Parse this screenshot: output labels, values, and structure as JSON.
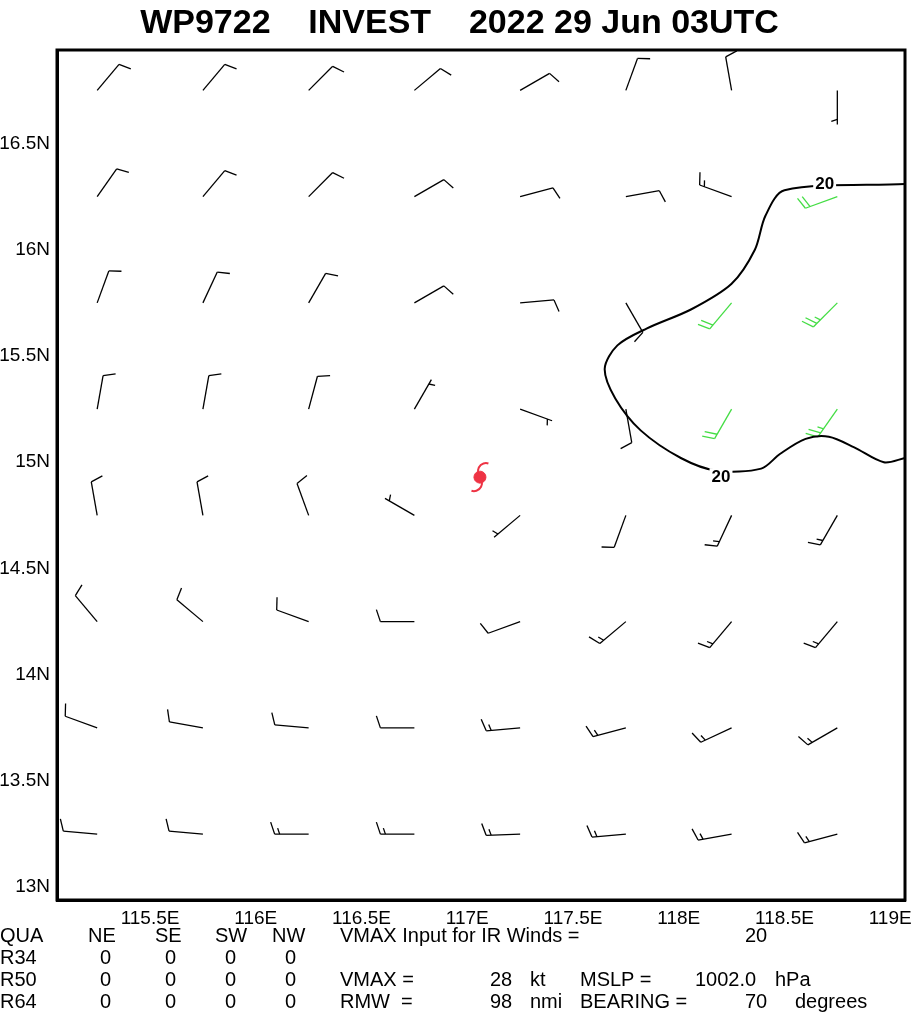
{
  "chart_data": {
    "type": "wind_barbs",
    "title": "WP9722    INVEST    2022 29 Jun 03UTC",
    "xlim": [
      115.06,
      119.07
    ],
    "ylim": [
      12.94,
      16.94
    ],
    "xticks": [
      {
        "value": 115.5,
        "label": "115.5E"
      },
      {
        "value": 116,
        "label": "116E"
      },
      {
        "value": 116.5,
        "label": "116.5E"
      },
      {
        "value": 117,
        "label": "117E"
      },
      {
        "value": 117.5,
        "label": "117.5E"
      },
      {
        "value": 118,
        "label": "118E"
      },
      {
        "value": 118.5,
        "label": "118.5E"
      },
      {
        "value": 119,
        "label": "119E"
      }
    ],
    "yticks": [
      {
        "value": 13,
        "label": "13N"
      },
      {
        "value": 13.5,
        "label": "13.5N"
      },
      {
        "value": 14,
        "label": "14N"
      },
      {
        "value": 14.5,
        "label": "14.5N"
      },
      {
        "value": 15,
        "label": "15N"
      },
      {
        "value": 15.5,
        "label": "15.5N"
      },
      {
        "value": 16,
        "label": "16N"
      },
      {
        "value": 16.5,
        "label": "16.5N"
      }
    ],
    "grid": false,
    "barbs": {
      "lons": [
        115.25,
        115.75,
        116.25,
        116.75,
        117.25,
        117.75,
        118.25,
        118.75
      ],
      "lats": [
        16.75,
        16.25,
        15.75,
        15.25,
        14.75,
        14.25,
        13.75,
        13.25
      ],
      "direction": [
        [
          40,
          40,
          45,
          50,
          60,
          20,
          350,
          180
        ],
        [
          35,
          40,
          45,
          60,
          75,
          80,
          290,
          250
        ],
        [
          20,
          25,
          30,
          60,
          85,
          150,
          220,
          225
        ],
        [
          10,
          10,
          15,
          30,
          110,
          170,
          210,
          215
        ],
        [
          350,
          350,
          340,
          300,
          230,
          200,
          205,
          210
        ],
        [
          320,
          310,
          290,
          270,
          250,
          230,
          220,
          220
        ],
        [
          290,
          280,
          275,
          270,
          265,
          255,
          245,
          240
        ],
        [
          275,
          275,
          270,
          270,
          268,
          265,
          260,
          255
        ]
      ],
      "speed": [
        [
          12,
          12,
          12,
          12,
          12,
          10,
          12,
          8
        ],
        [
          12,
          12,
          12,
          12,
          12,
          12,
          15,
          20
        ],
        [
          10,
          10,
          10,
          10,
          12,
          14,
          22,
          25
        ],
        [
          10,
          10,
          10,
          8,
          8,
          14,
          22,
          25
        ],
        [
          12,
          12,
          10,
          6,
          8,
          14,
          18,
          18
        ],
        [
          12,
          12,
          12,
          12,
          14,
          15,
          16,
          16
        ],
        [
          12,
          14,
          14,
          14,
          15,
          15,
          15,
          15
        ],
        [
          14,
          14,
          15,
          15,
          15,
          15,
          15,
          15
        ]
      ],
      "colors": [
        [
          "#000000",
          "#000000",
          "#000000",
          "#000000",
          "#000000",
          "#000000",
          "#000000",
          "#000000"
        ],
        [
          "#000000",
          "#000000",
          "#000000",
          "#000000",
          "#000000",
          "#000000",
          "#000000",
          "#44dd44"
        ],
        [
          "#000000",
          "#000000",
          "#000000",
          "#000000",
          "#000000",
          "#000000",
          "#44dd44",
          "#44dd44"
        ],
        [
          "#000000",
          "#000000",
          "#000000",
          "#000000",
          "#000000",
          "#000000",
          "#44dd44",
          "#44dd44"
        ],
        [
          "#000000",
          "#000000",
          "#000000",
          "#000000",
          "#000000",
          "#000000",
          "#000000",
          "#000000"
        ],
        [
          "#000000",
          "#000000",
          "#000000",
          "#000000",
          "#000000",
          "#000000",
          "#000000",
          "#000000"
        ],
        [
          "#000000",
          "#000000",
          "#000000",
          "#000000",
          "#000000",
          "#000000",
          "#000000",
          "#000000"
        ],
        [
          "#000000",
          "#000000",
          "#000000",
          "#000000",
          "#000000",
          "#000000",
          "#000000",
          "#000000"
        ]
      ]
    },
    "contour": {
      "level": 20,
      "color": "#000000",
      "points": [
        [
          119.07,
          16.31
        ],
        [
          118.5,
          16.28
        ],
        [
          118.41,
          16.16
        ],
        [
          118.36,
          16.0
        ],
        [
          118.25,
          15.84
        ],
        [
          118.06,
          15.72
        ],
        [
          117.85,
          15.63
        ],
        [
          117.71,
          15.55
        ],
        [
          117.65,
          15.44
        ],
        [
          117.7,
          15.3
        ],
        [
          117.82,
          15.15
        ],
        [
          118.01,
          15.02
        ],
        [
          118.18,
          14.96
        ],
        [
          118.39,
          14.97
        ],
        [
          118.48,
          15.04
        ],
        [
          118.6,
          15.11
        ],
        [
          118.71,
          15.12
        ],
        [
          118.83,
          15.07
        ],
        [
          118.97,
          15.0
        ],
        [
          119.07,
          15.02
        ]
      ],
      "label_positions": [
        [
          118.69,
          16.31
        ],
        [
          118.2,
          14.93
        ]
      ]
    },
    "center": {
      "lon": 117.06,
      "lat": 14.93,
      "color": "#ee3344"
    },
    "info": {
      "header": "QUA",
      "quadrants": [
        "NE",
        "SE",
        "SW",
        "NW"
      ],
      "radii": [
        {
          "label": "R34",
          "values": [
            0,
            0,
            0,
            0
          ]
        },
        {
          "label": "R50",
          "values": [
            0,
            0,
            0,
            0
          ]
        },
        {
          "label": "R64",
          "values": [
            0,
            0,
            0,
            0
          ]
        }
      ],
      "vmax_ir_label": "VMAX Input for IR Winds =",
      "vmax_ir": 20,
      "vmax_label": "VMAX =",
      "vmax": 28,
      "vmax_unit": "kt",
      "mslp_label": "MSLP =",
      "mslp": {
        "value": 1002.0,
        "label": "1002.0"
      },
      "mslp_unit": "hPa",
      "rmw_label": "RMW  =",
      "rmw": 98,
      "rmw_unit": "nmi",
      "bearing_label": "BEARING =",
      "bearing": 70,
      "bearing_unit": "degrees"
    }
  }
}
